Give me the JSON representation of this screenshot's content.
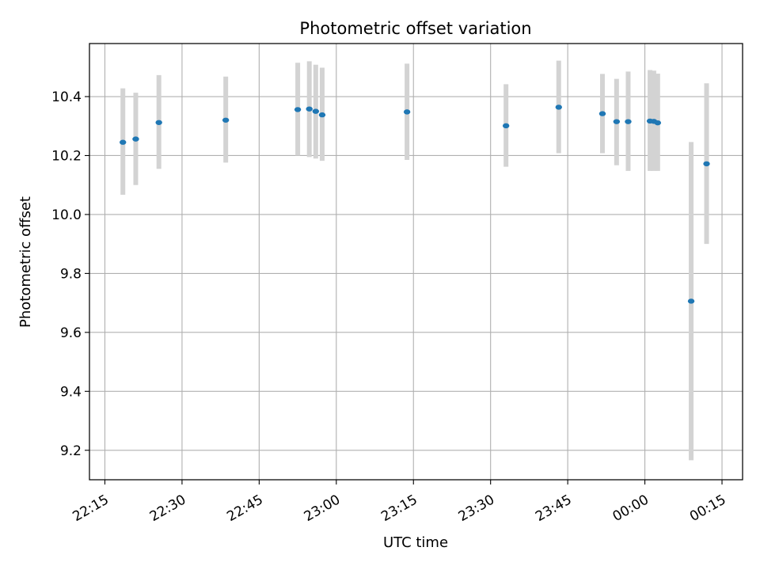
{
  "chart_data": {
    "type": "scatter",
    "title": "Photometric offset variation",
    "xlabel": "UTC time",
    "ylabel": "Photometric offset",
    "ylim": [
      9.1,
      10.58
    ],
    "xlim": [
      "22:12",
      "00:19 (+1 day)"
    ],
    "grid": true,
    "x_ticks": [
      "22:15",
      "22:30",
      "22:45",
      "23:00",
      "23:15",
      "23:30",
      "23:45",
      "00:00",
      "00:15"
    ],
    "y_ticks": [
      "9.2",
      "9.4",
      "9.6",
      "9.8",
      "10.0",
      "10.2",
      "10.4"
    ],
    "colors": {
      "point": "#1f77b4",
      "errorbar": "#d3d3d3",
      "grid": "#b0b0b0"
    },
    "points": [
      {
        "time": "22:18:30",
        "value": 10.245,
        "err_low": 10.067,
        "err_high": 10.428
      },
      {
        "time": "22:21:00",
        "value": 10.256,
        "err_low": 10.1,
        "err_high": 10.413
      },
      {
        "time": "22:25:30",
        "value": 10.312,
        "err_low": 10.155,
        "err_high": 10.473
      },
      {
        "time": "22:38:30",
        "value": 10.32,
        "err_low": 10.176,
        "err_high": 10.468
      },
      {
        "time": "22:52:30",
        "value": 10.356,
        "err_low": 10.2,
        "err_high": 10.515
      },
      {
        "time": "22:54:45",
        "value": 10.358,
        "err_low": 10.195,
        "err_high": 10.52
      },
      {
        "time": "22:56:00",
        "value": 10.35,
        "err_low": 10.19,
        "err_high": 10.508
      },
      {
        "time": "22:57:15",
        "value": 10.338,
        "err_low": 10.182,
        "err_high": 10.498
      },
      {
        "time": "23:13:45",
        "value": 10.348,
        "err_low": 10.185,
        "err_high": 10.512
      },
      {
        "time": "23:33:00",
        "value": 10.301,
        "err_low": 10.162,
        "err_high": 10.442
      },
      {
        "time": "23:43:15",
        "value": 10.364,
        "err_low": 10.208,
        "err_high": 10.522
      },
      {
        "time": "23:51:45",
        "value": 10.342,
        "err_low": 10.208,
        "err_high": 10.477
      },
      {
        "time": "23:54:30",
        "value": 10.315,
        "err_low": 10.167,
        "err_high": 10.46
      },
      {
        "time": "23:56:45",
        "value": 10.315,
        "err_low": 10.148,
        "err_high": 10.485
      },
      {
        "time": "00:01:00",
        "value": 10.317,
        "err_low": 10.148,
        "err_high": 10.49
      },
      {
        "time": "00:01:45",
        "value": 10.316,
        "err_low": 10.148,
        "err_high": 10.488
      },
      {
        "time": "00:02:30",
        "value": 10.311,
        "err_low": 10.148,
        "err_high": 10.478
      },
      {
        "time": "00:09:00",
        "value": 9.706,
        "err_low": 9.166,
        "err_high": 10.246
      },
      {
        "time": "00:12:00",
        "value": 10.172,
        "err_low": 9.9,
        "err_high": 10.445
      }
    ]
  }
}
